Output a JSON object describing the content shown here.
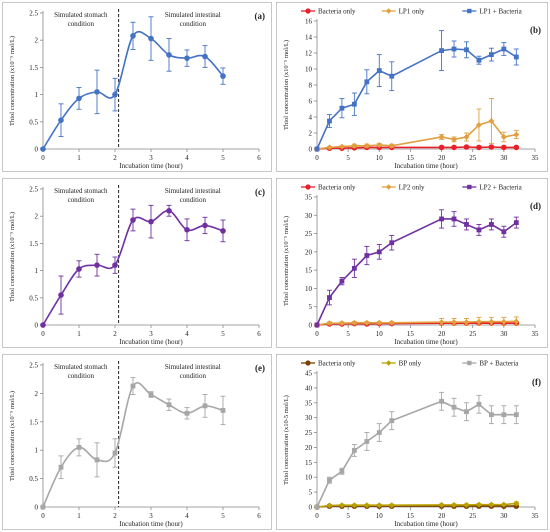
{
  "chart_data": [
    {
      "type": "line",
      "panel_label": "(a)",
      "xlabel": "Incubation time (hour)",
      "ylabel": "Thiol concentration (x10⁻⁵ mol/L)",
      "xlim": [
        0,
        6
      ],
      "ylim": [
        0,
        2.5
      ],
      "xticks": [
        "0",
        "1",
        "2",
        "3",
        "4",
        "5",
        "6"
      ],
      "yticks": [
        "0",
        "0.5",
        "1",
        "1.5",
        "2",
        "2.5"
      ],
      "annotations": [
        "Simulated stomach",
        "condition",
        "Simulated intestinal",
        "condition"
      ],
      "divider_x": 2.1,
      "legend": [],
      "series": [
        {
          "color": "#4472c4",
          "marker": "circle",
          "x": [
            0,
            0.5,
            1,
            1.5,
            2,
            2.5,
            3,
            3.5,
            4,
            4.5,
            5
          ],
          "y": [
            0,
            0.53,
            0.93,
            1.05,
            1.0,
            2.08,
            2.03,
            1.73,
            1.67,
            1.7,
            1.34
          ],
          "err": [
            0,
            0.3,
            0.2,
            0.4,
            0.3,
            0.25,
            0.4,
            0.3,
            0.15,
            0.2,
            0.15
          ]
        }
      ]
    },
    {
      "type": "line",
      "panel_label": "(b)",
      "xlabel": "Incubation time (hour)",
      "ylabel": "Thiol concentration (x10⁻⁵ mol/L)",
      "xlim": [
        0,
        35
      ],
      "ylim": [
        0,
        16
      ],
      "xticks": [
        "0",
        "5",
        "10",
        "15",
        "20",
        "25",
        "30",
        "35"
      ],
      "yticks": [
        "0",
        "2",
        "4",
        "6",
        "8",
        "10",
        "12",
        "14",
        "16"
      ],
      "annotations": [],
      "divider_x": null,
      "legend": [
        "Bacteria only",
        "LP1 only",
        "LP1 + Bacteria"
      ],
      "series": [
        {
          "name": "Bacteria only",
          "color": "#e8202a",
          "marker": "circle",
          "x": [
            0,
            2,
            4,
            6,
            8,
            10,
            12,
            20,
            22,
            24,
            26,
            28,
            30,
            32
          ],
          "y": [
            0,
            0.1,
            0.1,
            0.15,
            0.2,
            0.2,
            0.2,
            0.2,
            0.2,
            0.25,
            0.2,
            0.25,
            0.2,
            0.2
          ],
          "err": [
            0,
            0.1,
            0.1,
            0.1,
            0.1,
            0.1,
            0.1,
            0.1,
            0.1,
            0.1,
            0.1,
            0.1,
            0.1,
            0.1
          ]
        },
        {
          "name": "LP1 only",
          "color": "#e0a040",
          "marker": "diamond",
          "x": [
            0,
            2,
            4,
            6,
            8,
            10,
            12,
            20,
            22,
            24,
            26,
            28,
            30,
            32
          ],
          "y": [
            0,
            0.2,
            0.3,
            0.4,
            0.4,
            0.5,
            0.4,
            1.5,
            1.2,
            1.5,
            3.0,
            3.5,
            1.5,
            1.8
          ],
          "err": [
            0,
            0.1,
            0.1,
            0.2,
            0.2,
            0.2,
            0.2,
            0.3,
            0.3,
            0.5,
            2.0,
            2.8,
            0.6,
            0.5
          ]
        },
        {
          "name": "LP1 + Bacteria",
          "color": "#4472c4",
          "marker": "square",
          "x": [
            0,
            2,
            4,
            6,
            8,
            10,
            12,
            20,
            22,
            24,
            26,
            28,
            30,
            32
          ],
          "y": [
            0,
            3.5,
            5.1,
            5.6,
            8.4,
            9.8,
            9.1,
            12.3,
            12.5,
            12.4,
            11.1,
            11.8,
            12.5,
            11.5
          ],
          "err": [
            0,
            0.8,
            1.2,
            1.4,
            1.5,
            2.0,
            1.8,
            2.5,
            1.0,
            1.0,
            0.5,
            0.8,
            0.8,
            1.0
          ]
        }
      ]
    },
    {
      "type": "line",
      "panel_label": "(c)",
      "xlabel": "Incubation time (hour)",
      "ylabel": "Thiol concentration (x10⁻⁵ mol/L)",
      "xlim": [
        0,
        6
      ],
      "ylim": [
        0,
        2.5
      ],
      "xticks": [
        "0",
        "1",
        "2",
        "3",
        "4",
        "5",
        "6"
      ],
      "yticks": [
        "0",
        "0.5",
        "1",
        "1.5",
        "2",
        "2.5"
      ],
      "annotations": [
        "Simulated stomach",
        "condition",
        "Simulated intestinal",
        "condition"
      ],
      "divider_x": 2.1,
      "legend": [],
      "series": [
        {
          "color": "#7030a0",
          "marker": "circle",
          "x": [
            0,
            0.5,
            1,
            1.5,
            2,
            2.5,
            3,
            3.5,
            4,
            4.5,
            5
          ],
          "y": [
            0,
            0.55,
            1.03,
            1.1,
            1.1,
            1.93,
            1.9,
            2.1,
            1.75,
            1.83,
            1.73
          ],
          "err": [
            0,
            0.35,
            0.15,
            0.2,
            0.15,
            0.2,
            0.3,
            0.1,
            0.2,
            0.15,
            0.2
          ]
        }
      ]
    },
    {
      "type": "line",
      "panel_label": "(d)",
      "xlabel": "Incubation time (hour)",
      "ylabel": "Thiol concentration (x10⁻⁵ mol/L)",
      "xlim": [
        0,
        35
      ],
      "ylim": [
        0,
        35
      ],
      "xticks": [
        "0",
        "5",
        "10",
        "15",
        "20",
        "25",
        "30",
        "35"
      ],
      "yticks": [
        "0",
        "5",
        "10",
        "15",
        "20",
        "25",
        "30",
        "35"
      ],
      "annotations": [],
      "divider_x": null,
      "legend": [
        "Bacteria only",
        "LP2 only",
        "LP2 + Bacteria"
      ],
      "series": [
        {
          "name": "Bacteria only",
          "color": "#e8202a",
          "marker": "circle",
          "x": [
            0,
            2,
            4,
            6,
            8,
            10,
            12,
            20,
            22,
            24,
            26,
            28,
            30,
            32
          ],
          "y": [
            0,
            0.3,
            0.3,
            0.4,
            0.3,
            0.4,
            0.4,
            0.5,
            0.5,
            0.5,
            0.5,
            0.5,
            0.5,
            0.5
          ],
          "err": [
            0,
            0.2,
            0.2,
            0.2,
            0.2,
            0.2,
            0.2,
            0.3,
            0.3,
            0.3,
            0.3,
            0.3,
            0.3,
            0.3
          ]
        },
        {
          "name": "LP2 only",
          "color": "#e0a040",
          "marker": "diamond",
          "x": [
            0,
            2,
            4,
            6,
            8,
            10,
            12,
            20,
            22,
            24,
            26,
            28,
            30,
            32
          ],
          "y": [
            0,
            0.5,
            0.5,
            0.6,
            0.6,
            0.6,
            0.6,
            0.8,
            0.8,
            0.8,
            0.9,
            0.9,
            0.9,
            1.0
          ],
          "err": [
            0,
            0.3,
            0.3,
            0.3,
            0.3,
            0.3,
            0.3,
            1.0,
            1.0,
            1.0,
            1.2,
            1.2,
            1.2,
            1.2
          ]
        },
        {
          "name": "LP2 + Bacteria",
          "color": "#7030a0",
          "marker": "square",
          "x": [
            0,
            2,
            4,
            6,
            8,
            10,
            12,
            20,
            22,
            24,
            26,
            28,
            30,
            32
          ],
          "y": [
            0,
            7.5,
            12,
            15.5,
            19,
            20,
            22.5,
            29,
            29,
            27.5,
            26,
            27.5,
            25.5,
            28
          ],
          "err": [
            0,
            2,
            1,
            2.5,
            2.5,
            2,
            2,
            2.5,
            2,
            1.5,
            1.5,
            1.5,
            1.5,
            1.5
          ]
        }
      ]
    },
    {
      "type": "line",
      "panel_label": "(e)",
      "xlabel": "Incubation time (hour)",
      "ylabel": "Thiol concentration (x10⁻⁵ mol/L)",
      "xlim": [
        0,
        6
      ],
      "ylim": [
        0,
        2.5
      ],
      "xticks": [
        "0",
        "1",
        "2",
        "3",
        "4",
        "5",
        "6"
      ],
      "yticks": [
        "0",
        "0.5",
        "1",
        "1.5",
        "2",
        "2.5"
      ],
      "annotations": [
        "Simulated stomach",
        "condition",
        "Simulated intestinal",
        "condition"
      ],
      "divider_x": 2.1,
      "legend": [],
      "series": [
        {
          "color": "#a6a6a6",
          "marker": "square",
          "x": [
            0,
            0.5,
            1,
            1.5,
            2,
            2.5,
            3,
            3.5,
            4,
            4.5,
            5
          ],
          "y": [
            0,
            0.7,
            1.05,
            0.83,
            0.95,
            2.13,
            1.98,
            1.8,
            1.65,
            1.78,
            1.7
          ],
          "err": [
            0,
            0.2,
            0.15,
            0.3,
            0.25,
            0.15,
            0.05,
            0.1,
            0.1,
            0.2,
            0.25
          ]
        }
      ]
    },
    {
      "type": "line",
      "panel_label": "(f)",
      "xlabel": "Incubation time (hour)",
      "ylabel": "Thiol concentration (x10-5 mol/L)",
      "xlim": [
        0,
        35
      ],
      "ylim": [
        0,
        45
      ],
      "xticks": [
        "0",
        "5",
        "10",
        "15",
        "20",
        "25",
        "30",
        "35"
      ],
      "yticks": [
        "0",
        "5",
        "10",
        "15",
        "20",
        "25",
        "30",
        "35",
        "40",
        "45"
      ],
      "annotations": [],
      "divider_x": null,
      "legend": [
        "Bacteria only",
        "BP only",
        "BP + Bacteria"
      ],
      "series": [
        {
          "name": "Bacteria only",
          "color": "#7b3f00",
          "marker": "circle",
          "x": [
            0,
            2,
            4,
            6,
            8,
            10,
            12,
            20,
            22,
            24,
            26,
            28,
            30,
            32
          ],
          "y": [
            0,
            0.3,
            0.3,
            0.3,
            0.3,
            0.3,
            0.3,
            0.3,
            0.3,
            0.3,
            0.3,
            0.3,
            0.3,
            0.3
          ],
          "err": [
            0,
            0.2,
            0.2,
            0.2,
            0.2,
            0.2,
            0.2,
            0.2,
            0.2,
            0.2,
            0.2,
            0.2,
            0.2,
            0.2
          ]
        },
        {
          "name": "BP only",
          "color": "#b8a100",
          "marker": "diamond",
          "x": [
            0,
            2,
            4,
            6,
            8,
            10,
            12,
            20,
            22,
            24,
            26,
            28,
            30,
            32
          ],
          "y": [
            0,
            0.5,
            0.6,
            0.6,
            0.6,
            0.6,
            0.6,
            0.7,
            0.7,
            0.7,
            0.8,
            0.8,
            0.8,
            1.2
          ],
          "err": [
            0,
            0.3,
            0.3,
            0.3,
            0.3,
            0.3,
            0.3,
            0.3,
            0.3,
            0.3,
            0.3,
            0.3,
            0.3,
            0.5
          ]
        },
        {
          "name": "BP + Bacteria",
          "color": "#a6a6a6",
          "marker": "square",
          "x": [
            0,
            2,
            4,
            6,
            8,
            10,
            12,
            20,
            22,
            24,
            26,
            28,
            30,
            32
          ],
          "y": [
            0,
            9,
            12,
            19,
            22,
            25,
            29,
            35.5,
            33.5,
            32,
            34.5,
            31,
            31,
            31
          ],
          "err": [
            0,
            1,
            1,
            2,
            3,
            3,
            3,
            3,
            3,
            3,
            3,
            3,
            3,
            3
          ]
        }
      ]
    }
  ]
}
